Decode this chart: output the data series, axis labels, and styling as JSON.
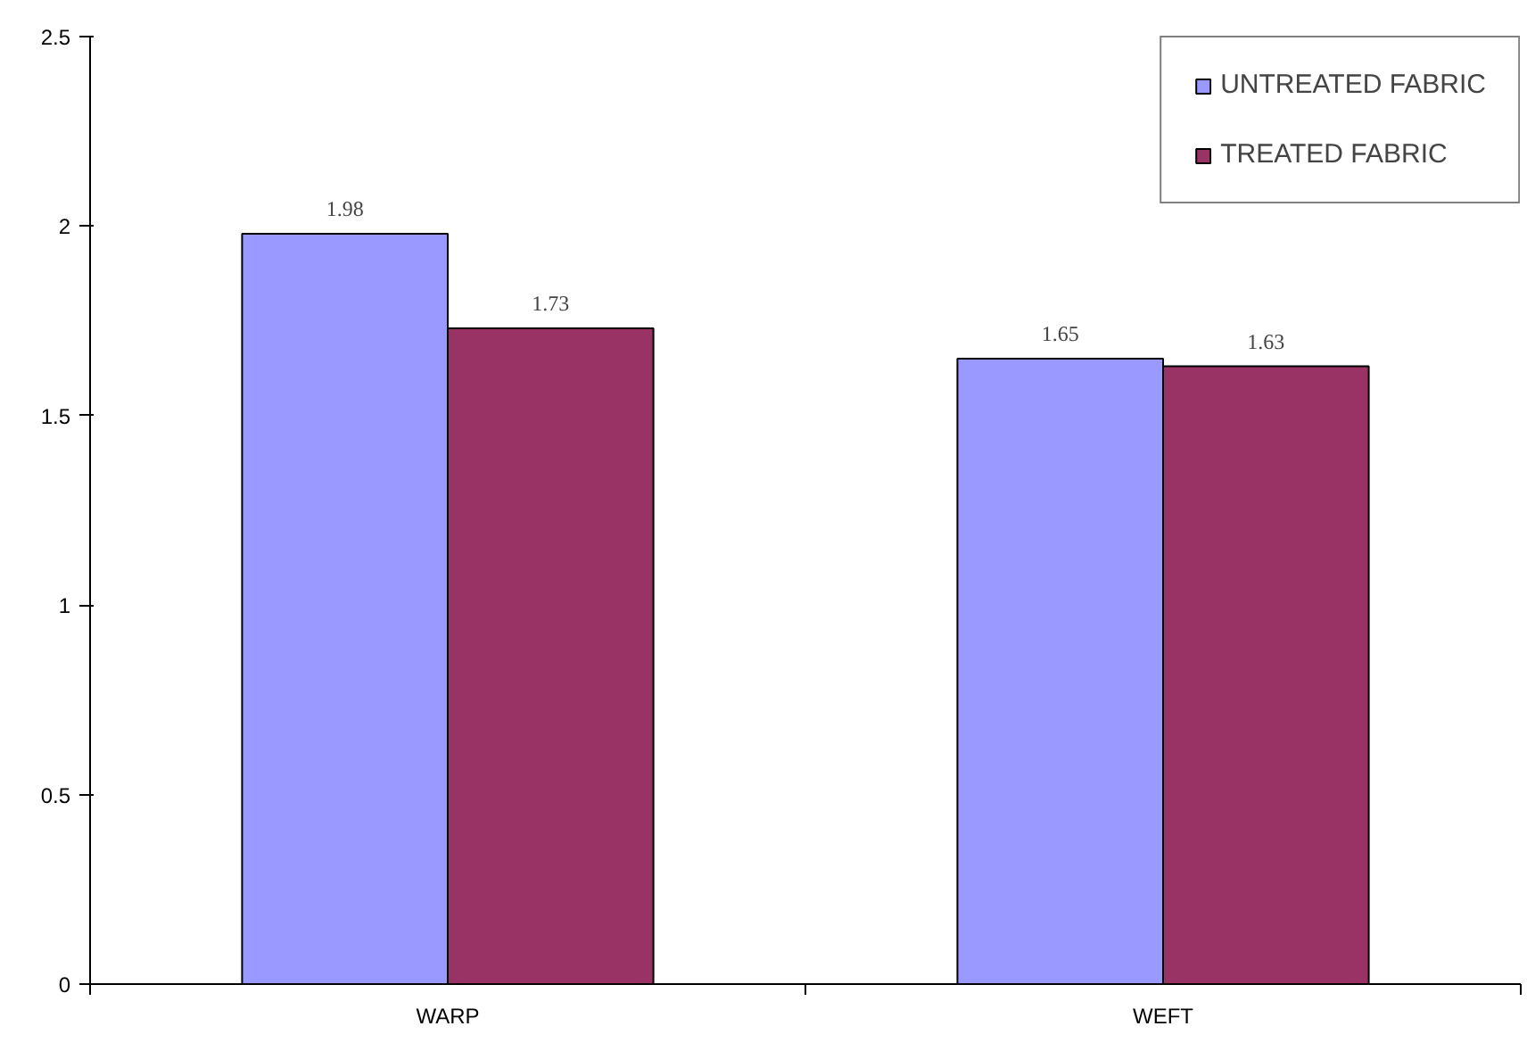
{
  "chart_data": {
    "type": "bar",
    "categories": [
      "WARP",
      "WEFT"
    ],
    "series": [
      {
        "name": "UNTREATED FABRIC",
        "color": "#9999ff",
        "values": [
          1.98,
          1.65
        ]
      },
      {
        "name": "TREATED FABRIC",
        "color": "#993366",
        "values": [
          1.73,
          1.63
        ]
      }
    ],
    "ylim": [
      0,
      2.5
    ],
    "yticks": [
      0,
      0.5,
      1,
      1.5,
      2,
      2.5
    ],
    "grid": false,
    "legend": "top right",
    "data_labels": true
  }
}
